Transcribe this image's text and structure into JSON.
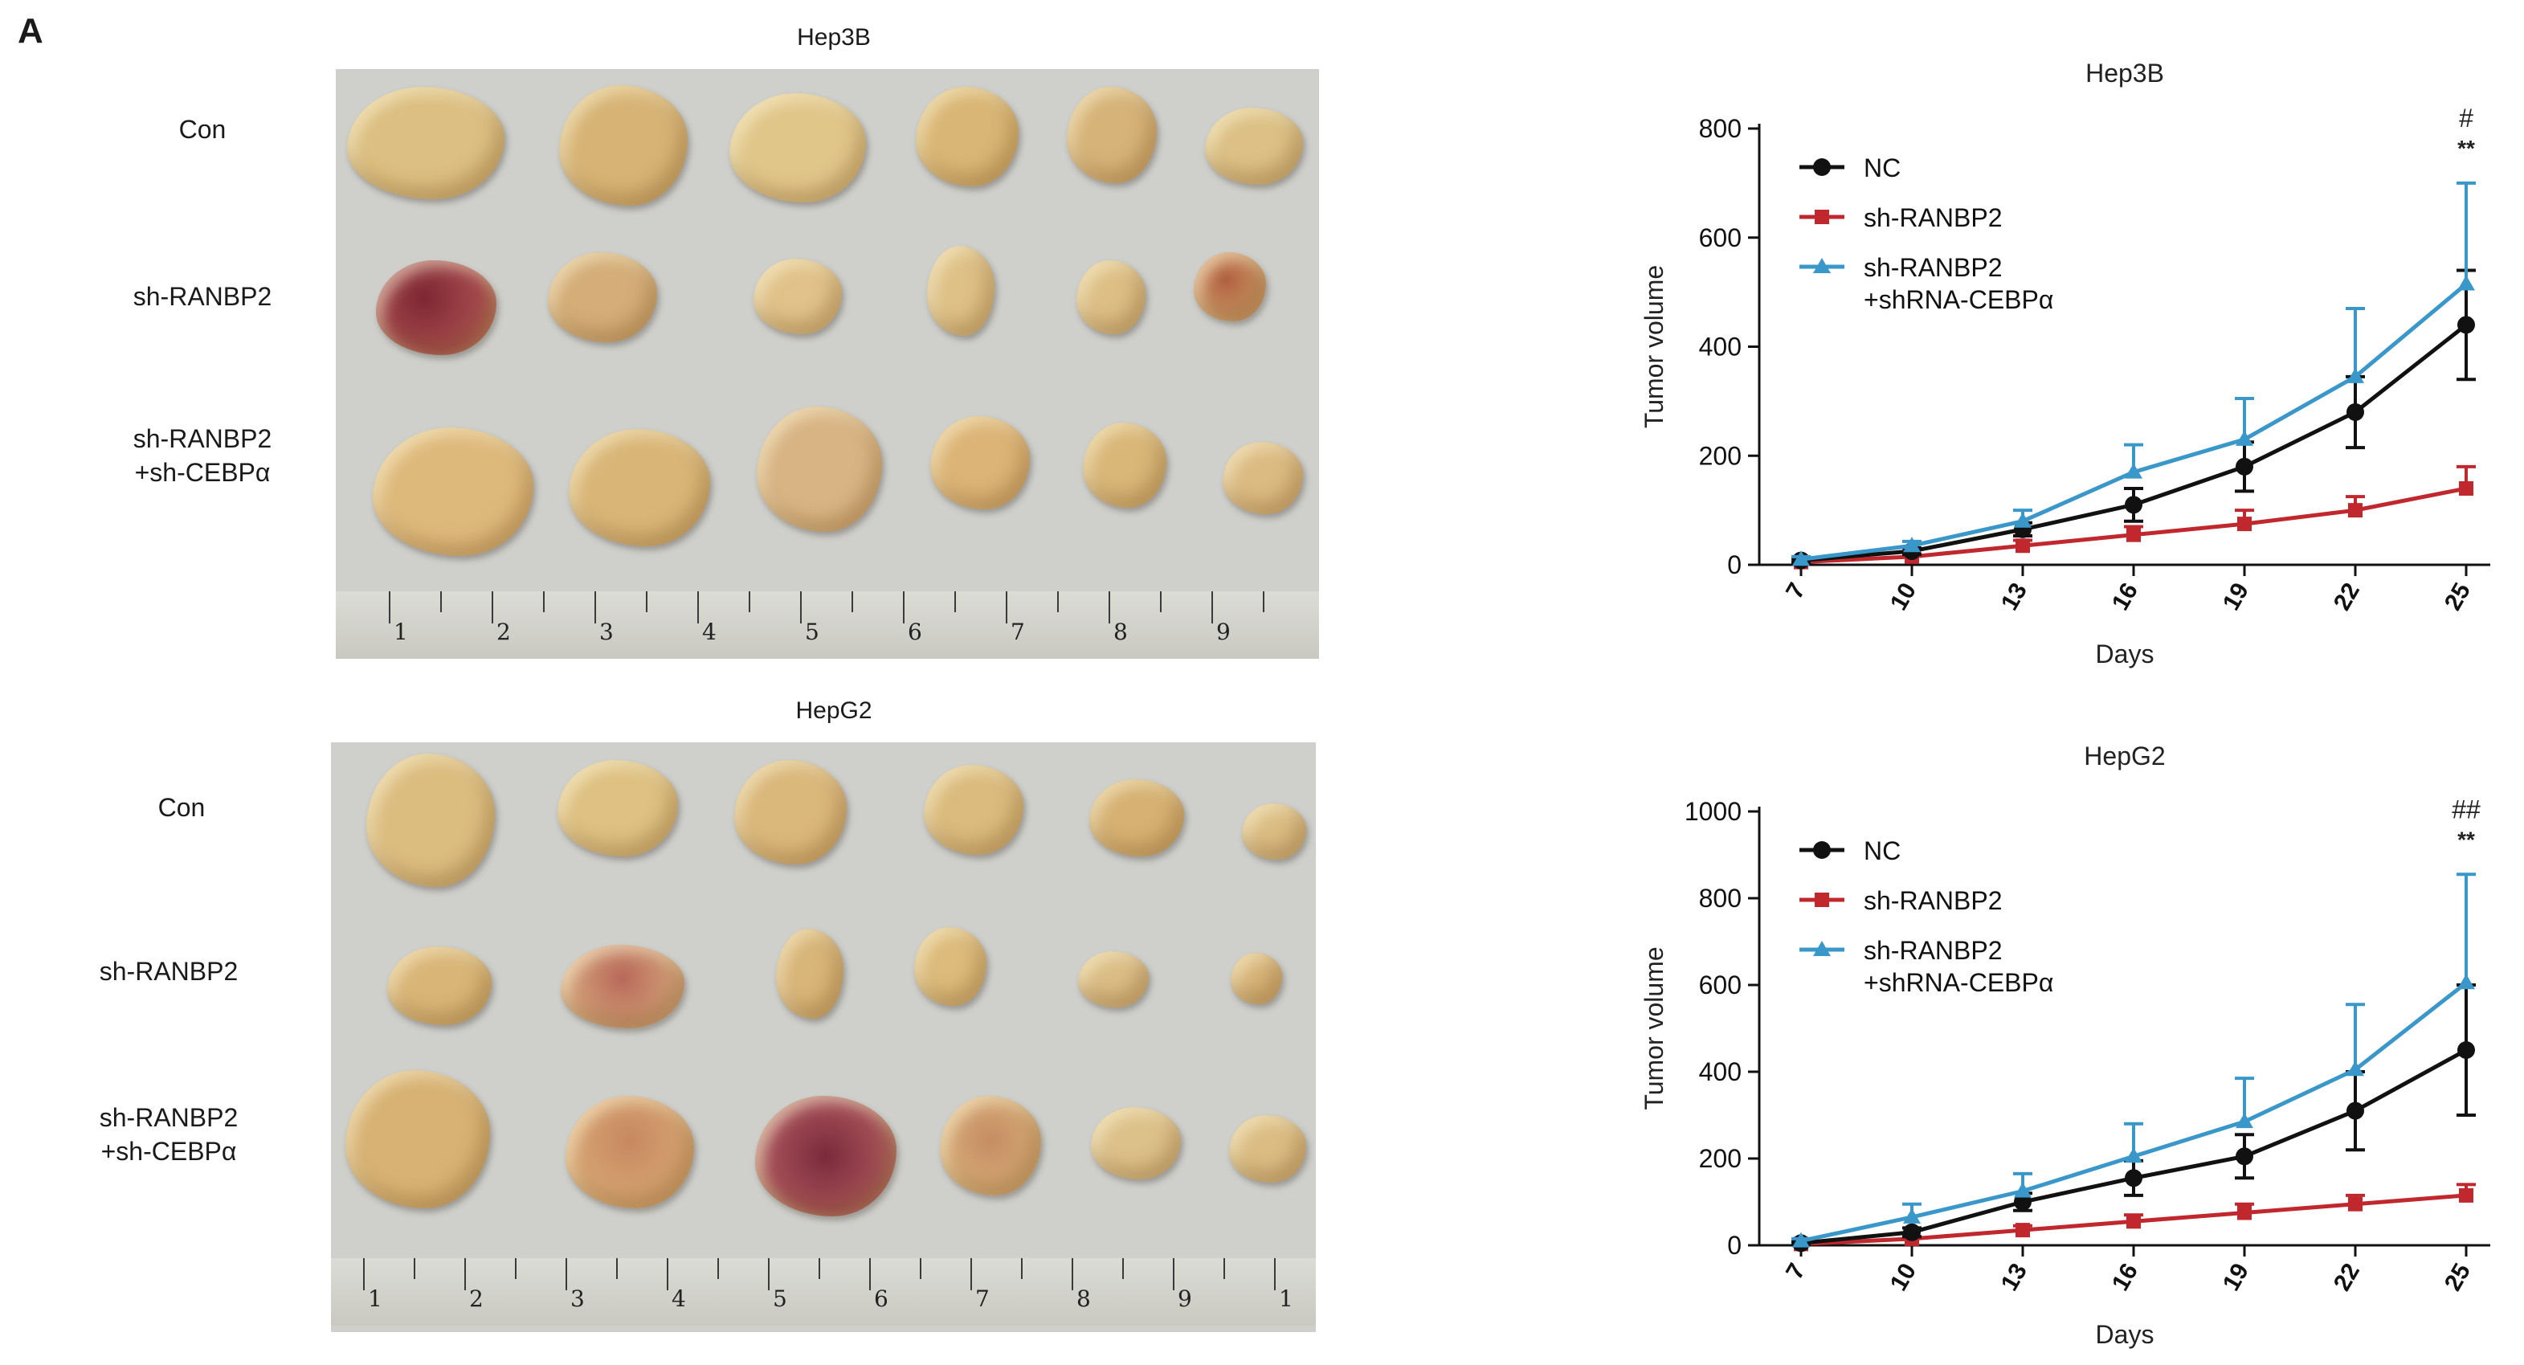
{
  "panel_label": "A",
  "photos": [
    {
      "title": "Hep3B",
      "rows": [
        "Con",
        "sh-RANBP2",
        "sh-RANBP2\n+sh-CEBPα"
      ],
      "ruler_numbers": [
        "1",
        "2",
        "3",
        "4",
        "5",
        "6",
        "7",
        "8",
        "9"
      ]
    },
    {
      "title": "HepG2",
      "rows": [
        "Con",
        "sh-RANBP2",
        "sh-RANBP2\n+sh-CEBPα"
      ],
      "ruler_numbers": [
        "1",
        "2",
        "3",
        "4",
        "5",
        "6",
        "7",
        "8",
        "9",
        "1"
      ]
    }
  ],
  "colors": {
    "nc": "#111111",
    "sh": "#c0282d",
    "combo": "#3a97c9"
  },
  "chart_data": [
    {
      "type": "line",
      "title": "Hep3B",
      "xlabel": "Days",
      "ylabel": "Tumor volume",
      "categories": [
        "7",
        "10",
        "13",
        "16",
        "19",
        "22",
        "25"
      ],
      "ylim": [
        0,
        800
      ],
      "yticks": [
        "0",
        "200",
        "400",
        "600",
        "800"
      ],
      "series": [
        {
          "name": "NC",
          "values": [
            8,
            25,
            65,
            110,
            180,
            280,
            440
          ],
          "errors": [
            4,
            6,
            12,
            30,
            45,
            65,
            100
          ]
        },
        {
          "name": "sh-RANBP2",
          "values": [
            5,
            15,
            35,
            55,
            75,
            100,
            140
          ],
          "errors": [
            3,
            5,
            10,
            15,
            25,
            25,
            40
          ]
        },
        {
          "name": "sh-RANBP2\n+shRNA-CEBPα",
          "values": [
            10,
            35,
            80,
            170,
            230,
            345,
            515
          ],
          "errors": [
            5,
            8,
            20,
            50,
            75,
            125,
            185
          ]
        }
      ],
      "annotations": [
        "#",
        "**"
      ]
    },
    {
      "type": "line",
      "title": "HepG2",
      "xlabel": "Days",
      "ylabel": "Tumor volume",
      "categories": [
        "7",
        "10",
        "13",
        "16",
        "19",
        "22",
        "25"
      ],
      "ylim": [
        0,
        1000
      ],
      "yticks": [
        "0",
        "200",
        "400",
        "600",
        "800",
        "1000"
      ],
      "series": [
        {
          "name": "NC",
          "values": [
            5,
            30,
            100,
            155,
            205,
            310,
            450
          ],
          "errors": [
            3,
            10,
            20,
            40,
            50,
            90,
            150
          ]
        },
        {
          "name": "sh-RANBP2",
          "values": [
            3,
            15,
            35,
            55,
            75,
            95,
            115
          ],
          "errors": [
            2,
            5,
            10,
            15,
            20,
            20,
            25
          ]
        },
        {
          "name": "sh-RANBP2\n+shRNA-CEBPα",
          "values": [
            10,
            65,
            125,
            205,
            285,
            405,
            605
          ],
          "errors": [
            5,
            30,
            40,
            75,
            100,
            150,
            250
          ]
        }
      ],
      "annotations": [
        "##",
        "**"
      ]
    }
  ]
}
